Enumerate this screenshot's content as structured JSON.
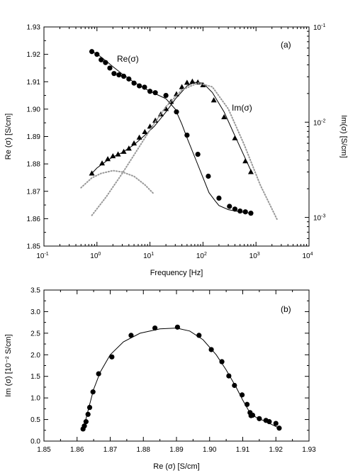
{
  "chart_data": [
    {
      "type": "line",
      "panel_label": "(a)",
      "xlabel": "Frequency [Hz]",
      "ylabel": "Re (σ) [S/cm]",
      "y2label": "Im(σ) [S/cm]",
      "x_scale": "log",
      "xlim": [
        0.1,
        10000
      ],
      "ylim": [
        1.85,
        1.93
      ],
      "y2_scale": "log",
      "y2lim": [
        0.0005,
        0.1
      ],
      "x_ticks": [
        {
          "value": 0.1,
          "base": "10",
          "exp": "-1"
        },
        {
          "value": 1,
          "base": "10",
          "exp": "0"
        },
        {
          "value": 10,
          "base": "10",
          "exp": "1"
        },
        {
          "value": 100,
          "base": "10",
          "exp": "2"
        },
        {
          "value": 1000,
          "base": "10",
          "exp": "3"
        },
        {
          "value": 10000,
          "base": "10",
          "exp": "4"
        }
      ],
      "y_ticks": [
        "1.85",
        "1.86",
        "1.87",
        "1.88",
        "1.89",
        "1.90",
        "1.91",
        "1.92",
        "1.93"
      ],
      "y2_ticks": [
        {
          "value": 0.001,
          "base": "10",
          "exp": "-3"
        },
        {
          "value": 0.01,
          "base": "10",
          "exp": "-2"
        },
        {
          "value": 0.1,
          "base": "10",
          "exp": "-1"
        }
      ],
      "annotations": {
        "re": "Re(σ)",
        "im": "Im(σ)"
      },
      "series": [
        {
          "key": "re_points",
          "marker": "circle",
          "axis": "left",
          "x": [
            0.8,
            1.0,
            1.2,
            1.45,
            1.75,
            2.1,
            2.6,
            3.2,
            4.0,
            5.0,
            6.3,
            7.9,
            10,
            12.6,
            20,
            31.6,
            50,
            80,
            126,
            200,
            316,
            400,
            500,
            630,
            800
          ],
          "y": [
            1.921,
            1.92,
            1.918,
            1.917,
            1.915,
            1.913,
            1.9125,
            1.912,
            1.911,
            1.9095,
            1.9085,
            1.908,
            1.9065,
            1.906,
            1.905,
            1.899,
            1.8905,
            1.8835,
            1.8755,
            1.8675,
            1.8645,
            1.8635,
            1.8628,
            1.8625,
            1.862
          ]
        },
        {
          "key": "re_fit",
          "line": "solid",
          "axis": "left",
          "x": [
            0.8,
            1,
            1.5,
            2,
            3,
            5,
            8,
            12,
            20,
            30,
            40,
            50,
            70,
            100,
            130,
            170,
            200,
            300,
            500,
            800
          ],
          "y": [
            1.921,
            1.9202,
            1.9175,
            1.9155,
            1.9128,
            1.9098,
            1.9075,
            1.9058,
            1.9038,
            1.9,
            1.8945,
            1.8895,
            1.8825,
            1.875,
            1.8695,
            1.8665,
            1.8648,
            1.8633,
            1.8625,
            1.862
          ]
        },
        {
          "key": "im_points",
          "marker": "triangle",
          "axis": "right",
          "x": [
            0.8,
            1.25,
            1.6,
            2.0,
            2.5,
            3.2,
            4.0,
            5.0,
            6.3,
            8.0,
            10,
            12.6,
            16,
            20,
            25,
            31.6,
            40,
            50,
            63,
            80,
            100,
            160,
            250,
            400,
            630,
            800
          ],
          "y": [
            0.0029,
            0.0037,
            0.0041,
            0.0044,
            0.0046,
            0.0049,
            0.0053,
            0.006,
            0.0069,
            0.0079,
            0.009,
            0.0104,
            0.0121,
            0.0138,
            0.0164,
            0.0197,
            0.0234,
            0.026,
            0.0267,
            0.0262,
            0.0245,
            0.017,
            0.0113,
            0.0068,
            0.0039,
            0.003
          ]
        },
        {
          "key": "im_fit",
          "line": "solid",
          "axis": "right",
          "x": [
            0.8,
            1,
            1.5,
            2,
            3,
            5,
            8,
            12,
            20,
            30,
            50,
            70,
            100,
            150,
            250,
            400,
            600,
            800
          ],
          "y": [
            0.0029,
            0.0033,
            0.0039,
            0.0043,
            0.0048,
            0.0058,
            0.0073,
            0.009,
            0.0128,
            0.0175,
            0.024,
            0.0262,
            0.0257,
            0.0205,
            0.0128,
            0.0072,
            0.0044,
            0.0031
          ]
        },
        {
          "key": "im_low_peak",
          "line": "dotted",
          "axis": "right",
          "x": [
            0.5,
            0.8,
            1.2,
            2,
            3,
            5,
            8,
            12
          ],
          "y": [
            0.00205,
            0.0026,
            0.0029,
            0.0031,
            0.003,
            0.0027,
            0.0022,
            0.00175
          ]
        },
        {
          "key": "im_high_peak",
          "line": "dotted",
          "axis": "right",
          "x": [
            0.8,
            1.5,
            3,
            6,
            12,
            20,
            40,
            80,
            150,
            300,
            600,
            1200,
            2500
          ],
          "y": [
            0.00105,
            0.00165,
            0.0029,
            0.0053,
            0.0097,
            0.0145,
            0.0218,
            0.0258,
            0.0235,
            0.0138,
            0.0058,
            0.0022,
            0.00095
          ]
        }
      ]
    },
    {
      "type": "scatter",
      "panel_label": "(b)",
      "xlabel": "Re (σ) [S/cm]",
      "ylabel": "Im (σ) [10⁻² S/cm]",
      "xlim": [
        1.85,
        1.93
      ],
      "ylim": [
        0.0,
        3.5
      ],
      "x_ticks": [
        "1.85",
        "1.86",
        "1.87",
        "1.88",
        "1.89",
        "1.90",
        "1.91",
        "1.92",
        "1.93"
      ],
      "y_ticks": [
        "0.0",
        "0.5",
        "1.0",
        "1.5",
        "2.0",
        "2.5",
        "3.0",
        "3.5"
      ],
      "series": [
        {
          "key": "cole_points",
          "marker": "circle",
          "x": [
            1.8618,
            1.8622,
            1.8627,
            1.8633,
            1.8638,
            1.8648,
            1.8665,
            1.8705,
            1.8763,
            1.8835,
            1.8903,
            1.8968,
            1.9005,
            1.9037,
            1.9058,
            1.9075,
            1.9098,
            1.9113,
            1.9122,
            1.9125,
            1.913,
            1.915,
            1.917,
            1.918,
            1.92,
            1.921
          ],
          "y": [
            0.28,
            0.35,
            0.45,
            0.62,
            0.78,
            1.14,
            1.56,
            1.95,
            2.45,
            2.62,
            2.64,
            2.45,
            2.12,
            1.84,
            1.51,
            1.29,
            1.07,
            0.85,
            0.66,
            0.59,
            0.6,
            0.52,
            0.48,
            0.45,
            0.41,
            0.3
          ]
        },
        {
          "key": "cole_fit",
          "line": "solid",
          "x": [
            1.862,
            1.8628,
            1.8638,
            1.865,
            1.867,
            1.87,
            1.874,
            1.879,
            1.885,
            1.89,
            1.894,
            1.898,
            1.902,
            1.905,
            1.908,
            1.91,
            1.912,
            1.914,
            1.917,
            1.921
          ],
          "y": [
            0.3,
            0.55,
            0.85,
            1.2,
            1.6,
            2.0,
            2.3,
            2.5,
            2.6,
            2.62,
            2.55,
            2.35,
            2.0,
            1.65,
            1.25,
            0.95,
            0.68,
            0.55,
            0.45,
            0.3
          ]
        }
      ]
    }
  ]
}
